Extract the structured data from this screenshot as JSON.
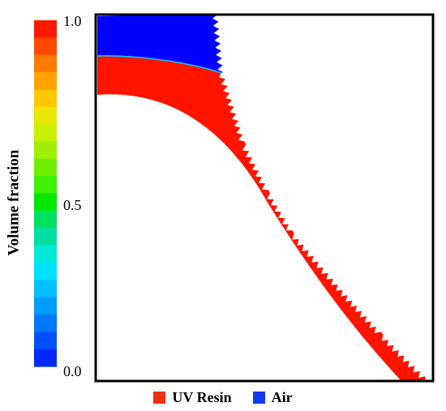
{
  "colorbar": {
    "label": "Volume fraction",
    "ticks": [
      "1.0",
      "0.5",
      "0.0"
    ],
    "colors": [
      "#ff1800",
      "#ff4a00",
      "#ff7a00",
      "#ffa200",
      "#ffc800",
      "#e8e800",
      "#c8f000",
      "#9ef000",
      "#6ef000",
      "#3cf000",
      "#00e800",
      "#00e060",
      "#00e0a0",
      "#00e8d8",
      "#00e0ff",
      "#00c0ff",
      "#009cff",
      "#0078ff",
      "#0050ff",
      "#0028ff"
    ]
  },
  "legend": {
    "resin": {
      "label": "UV Resin",
      "color": "#f02e14"
    },
    "air": {
      "label": "Air",
      "color": "#0c3cf0"
    }
  },
  "colors": {
    "resin": "#ff1400",
    "air": "#0000ff",
    "interface": "#00d0ff",
    "frame": "#000000"
  }
}
